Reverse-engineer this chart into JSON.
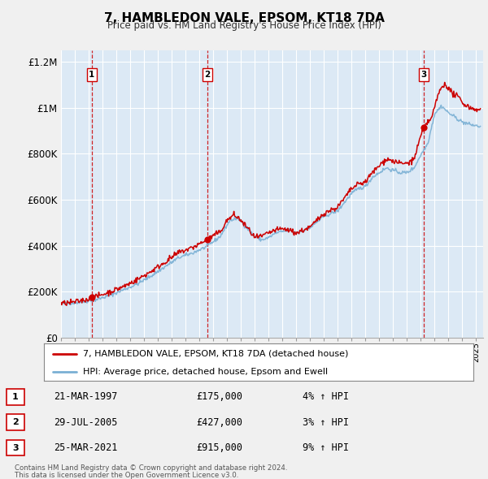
{
  "title": "7, HAMBLEDON VALE, EPSOM, KT18 7DA",
  "subtitle": "Price paid vs. HM Land Registry's House Price Index (HPI)",
  "red_label": "7, HAMBLEDON VALE, EPSOM, KT18 7DA (detached house)",
  "blue_label": "HPI: Average price, detached house, Epsom and Ewell",
  "footer1": "Contains HM Land Registry data © Crown copyright and database right 2024.",
  "footer2": "This data is licensed under the Open Government Licence v3.0.",
  "sales": [
    {
      "label": "1",
      "date": "21-MAR-1997",
      "price": 175000,
      "pct": "4%",
      "x": 1997.22
    },
    {
      "label": "2",
      "date": "29-JUL-2005",
      "price": 427000,
      "pct": "3%",
      "x": 2005.57
    },
    {
      "label": "3",
      "date": "25-MAR-2021",
      "price": 915000,
      "pct": "9%",
      "x": 2021.22
    }
  ],
  "sale_prices": [
    175000,
    427000,
    915000
  ],
  "ylim": [
    0,
    1250000
  ],
  "xlim": [
    1995.0,
    2025.5
  ],
  "yticks": [
    0,
    200000,
    400000,
    600000,
    800000,
    1000000,
    1200000
  ],
  "ytick_labels": [
    "£0",
    "£200K",
    "£400K",
    "£600K",
    "£800K",
    "£1M",
    "£1.2M"
  ],
  "bg_color": "#f0f0f0",
  "plot_bg": "#dce9f5",
  "red_color": "#cc0000",
  "blue_color": "#7ab0d4",
  "grid_color": "#ffffff",
  "vline_color": "#cc0000",
  "legend_border": "#888888"
}
